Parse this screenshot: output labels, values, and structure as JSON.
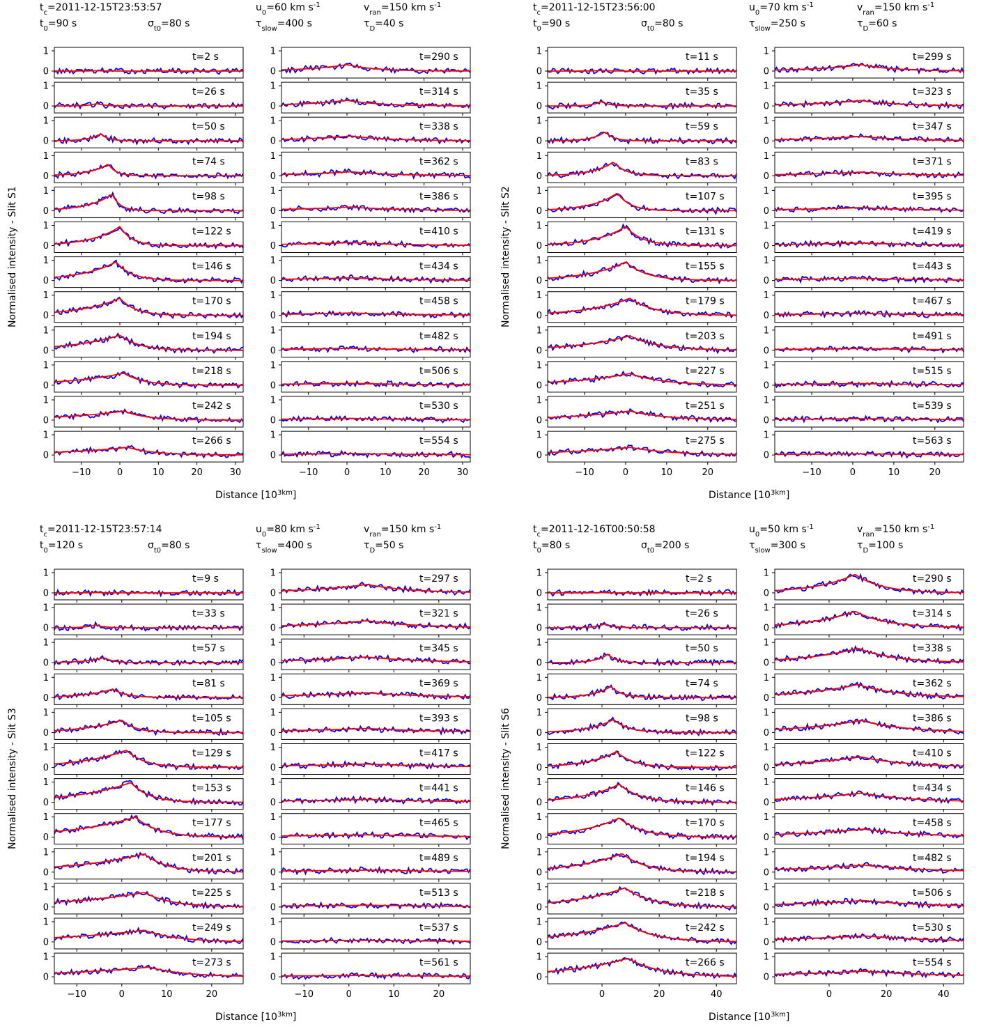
{
  "figures": [
    {
      "header": {
        "tc": "t_c=2011-12-15T23:53:57",
        "t0": "t_0=90 s",
        "sigma": "σ_t0=80 s",
        "u0": "u_0=60 km s^-1",
        "tau_slow": "τ_slow=400 s",
        "v_ran": "v_ran=150 km s^-1",
        "tau_D": "τ_D=40 s"
      },
      "ylabel": "Normalised intensity - Slit S1",
      "xlabel": "Distance [10^3km]",
      "xlim": [
        -17,
        32
      ],
      "xticks": [
        -10,
        0,
        10,
        20,
        30
      ],
      "times_left": [
        "t=2 s",
        "t=26 s",
        "t=50 s",
        "t=74 s",
        "t=98 s",
        "t=122 s",
        "t=146 s",
        "t=170 s",
        "t=194 s",
        "t=218 s",
        "t=242 s",
        "t=266 s"
      ],
      "times_right": [
        "t=290 s",
        "t=314 s",
        "t=338 s",
        "t=362 s",
        "t=386 s",
        "t=410 s",
        "t=434 s",
        "t=458 s",
        "t=482 s",
        "t=506 s",
        "t=530 s",
        "t=554 s"
      ],
      "peak_x_left": [
        -6,
        -6,
        -5,
        -3,
        -2,
        0,
        -1,
        0,
        0,
        1,
        1,
        2
      ],
      "peak_x_right": [
        0,
        0,
        1,
        1,
        1,
        1,
        1,
        1,
        1,
        1,
        1,
        1
      ],
      "amp_left": [
        0.02,
        0.12,
        0.35,
        0.58,
        0.82,
        0.95,
        0.92,
        0.85,
        0.75,
        0.6,
        0.45,
        0.38
      ],
      "amp_right": [
        0.32,
        0.28,
        0.24,
        0.2,
        0.18,
        0.15,
        0.13,
        0.12,
        0.1,
        0.09,
        0.08,
        0.07
      ],
      "wl_left": [
        2,
        2,
        3,
        5,
        6,
        7,
        9,
        10,
        12,
        14,
        16,
        18
      ],
      "wr_left": [
        2,
        2,
        2,
        2,
        2,
        3,
        4,
        4,
        5,
        5,
        6,
        7
      ],
      "w_right": [
        9,
        11,
        13,
        14,
        16,
        18,
        20,
        22,
        24,
        26,
        28,
        30
      ]
    },
    {
      "header": {
        "tc": "t_c=2011-12-15T23:56:00",
        "t0": "t_0=90 s",
        "sigma": "σ_t0=80 s",
        "u0": "u_0=70 km s^-1",
        "tau_slow": "τ_slow=250 s",
        "v_ran": "v_ran=150 km s^-1",
        "tau_D": "τ_D=60 s"
      },
      "ylabel": "Normalised intensity - Slit S2",
      "xlabel": "Distance [10^3km]",
      "xlim": [
        -19,
        27
      ],
      "xticks": [
        -10,
        0,
        10,
        20
      ],
      "times_left": [
        "t=11 s",
        "t=35 s",
        "t=59 s",
        "t=83 s",
        "t=107 s",
        "t=131 s",
        "t=155 s",
        "t=179 s",
        "t=203 s",
        "t=227 s",
        "t=251 s",
        "t=275 s"
      ],
      "times_right": [
        "t=299 s",
        "t=323 s",
        "t=347 s",
        "t=371 s",
        "t=395 s",
        "t=419 s",
        "t=443 s",
        "t=467 s",
        "t=491 s",
        "t=515 s",
        "t=539 s",
        "t=563 s"
      ],
      "peak_x_left": [
        -6,
        -6,
        -5,
        -3,
        -2,
        0,
        0,
        1,
        1,
        1,
        1,
        1
      ],
      "peak_x_right": [
        2,
        2,
        2,
        2,
        2,
        2,
        2,
        2,
        2,
        2,
        2,
        2
      ],
      "amp_left": [
        0.03,
        0.22,
        0.45,
        0.68,
        0.88,
        0.95,
        0.92,
        0.85,
        0.72,
        0.58,
        0.45,
        0.38
      ],
      "amp_right": [
        0.32,
        0.27,
        0.22,
        0.18,
        0.15,
        0.13,
        0.11,
        0.1,
        0.09,
        0.08,
        0.07,
        0.06
      ],
      "wl_left": [
        2,
        2,
        3,
        5,
        6,
        7,
        9,
        10,
        12,
        14,
        16,
        18
      ],
      "wr_left": [
        2,
        2,
        2,
        3,
        3,
        4,
        5,
        6,
        7,
        8,
        9,
        10
      ],
      "w_right": [
        10,
        12,
        14,
        16,
        18,
        20,
        22,
        24,
        26,
        28,
        30,
        32
      ]
    },
    {
      "header": {
        "tc": "t_c=2011-12-15T23:57:14",
        "t0": "t_0=120 s",
        "sigma": "σ_t0=80 s",
        "u0": "u_0=80 km s^-1",
        "tau_slow": "τ_slow=400 s",
        "v_ran": "v_ran=150 km s^-1",
        "tau_D": "τ_D=50 s"
      },
      "ylabel": "Normalised intensity - Slit S3",
      "xlabel": "Distance [10^3km]",
      "xlim": [
        -15,
        27
      ],
      "xticks": [
        -10,
        0,
        10,
        20
      ],
      "times_left": [
        "t=9 s",
        "t=33 s",
        "t=57 s",
        "t=81 s",
        "t=105 s",
        "t=129 s",
        "t=153 s",
        "t=177 s",
        "t=201 s",
        "t=225 s",
        "t=249 s",
        "t=273 s"
      ],
      "times_right": [
        "t=297 s",
        "t=321 s",
        "t=345 s",
        "t=369 s",
        "t=393 s",
        "t=417 s",
        "t=441 s",
        "t=465 s",
        "t=489 s",
        "t=513 s",
        "t=537 s",
        "t=561 s"
      ],
      "peak_x_left": [
        -6,
        -6,
        -4,
        -2,
        0,
        1,
        2,
        3,
        5,
        5,
        5,
        6
      ],
      "peak_x_right": [
        4,
        4,
        4,
        4,
        4,
        4,
        4,
        4,
        4,
        4,
        4,
        4
      ],
      "amp_left": [
        0.02,
        0.14,
        0.25,
        0.42,
        0.62,
        0.85,
        0.98,
        1.0,
        0.9,
        0.72,
        0.58,
        0.48
      ],
      "amp_right": [
        0.42,
        0.35,
        0.28,
        0.24,
        0.2,
        0.17,
        0.14,
        0.12,
        0.1,
        0.09,
        0.08,
        0.07
      ],
      "wl_left": [
        2,
        2,
        4,
        6,
        8,
        10,
        12,
        14,
        16,
        18,
        20,
        22
      ],
      "wr_left": [
        2,
        2,
        2,
        3,
        3,
        4,
        4,
        5,
        5,
        6,
        7,
        8
      ],
      "w_right": [
        12,
        14,
        16,
        18,
        20,
        22,
        24,
        26,
        28,
        30,
        32,
        34
      ]
    },
    {
      "header": {
        "tc": "t_c=2011-12-16T00:50:58",
        "t0": "t_0=80 s",
        "sigma": "σ_t0=200 s",
        "u0": "u_0=50 km s^-1",
        "tau_slow": "τ_slow=300 s",
        "v_ran": "v_ran=150 km s^-1",
        "tau_D": "τ_D=100 s"
      },
      "ylabel": "Normalised intensity - Slit S6",
      "xlabel": "Distance [10^3km]",
      "xlim": [
        -19,
        47
      ],
      "xticks": [
        0,
        20,
        40
      ],
      "times_left": [
        "t=2 s",
        "t=26 s",
        "t=50 s",
        "t=74 s",
        "t=98 s",
        "t=122 s",
        "t=146 s",
        "t=170 s",
        "t=194 s",
        "t=218 s",
        "t=242 s",
        "t=266 s"
      ],
      "times_right": [
        "t=290 s",
        "t=314 s",
        "t=338 s",
        "t=362 s",
        "t=386 s",
        "t=410 s",
        "t=434 s",
        "t=458 s",
        "t=482 s",
        "t=506 s",
        "t=530 s",
        "t=554 s"
      ],
      "peak_x_left": [
        0,
        1,
        2,
        3,
        4,
        5,
        6,
        6,
        7,
        8,
        8,
        9
      ],
      "peak_x_right": [
        9,
        9,
        10,
        10,
        11,
        11,
        11,
        12,
        12,
        12,
        12,
        12
      ],
      "amp_left": [
        0.02,
        0.2,
        0.42,
        0.55,
        0.65,
        0.78,
        0.9,
        0.95,
        0.92,
        0.95,
        0.95,
        0.92
      ],
      "amp_right": [
        0.92,
        0.82,
        0.72,
        0.65,
        0.6,
        0.52,
        0.45,
        0.4,
        0.35,
        0.32,
        0.3,
        0.28
      ],
      "wl_left": [
        2,
        3,
        4,
        6,
        8,
        10,
        12,
        14,
        16,
        18,
        20,
        22
      ],
      "wr_left": [
        2,
        3,
        3,
        4,
        5,
        6,
        7,
        8,
        8,
        9,
        10,
        11
      ],
      "w_right": [
        12,
        14,
        16,
        18,
        20,
        22,
        24,
        26,
        28,
        30,
        32,
        34
      ]
    }
  ]
}
